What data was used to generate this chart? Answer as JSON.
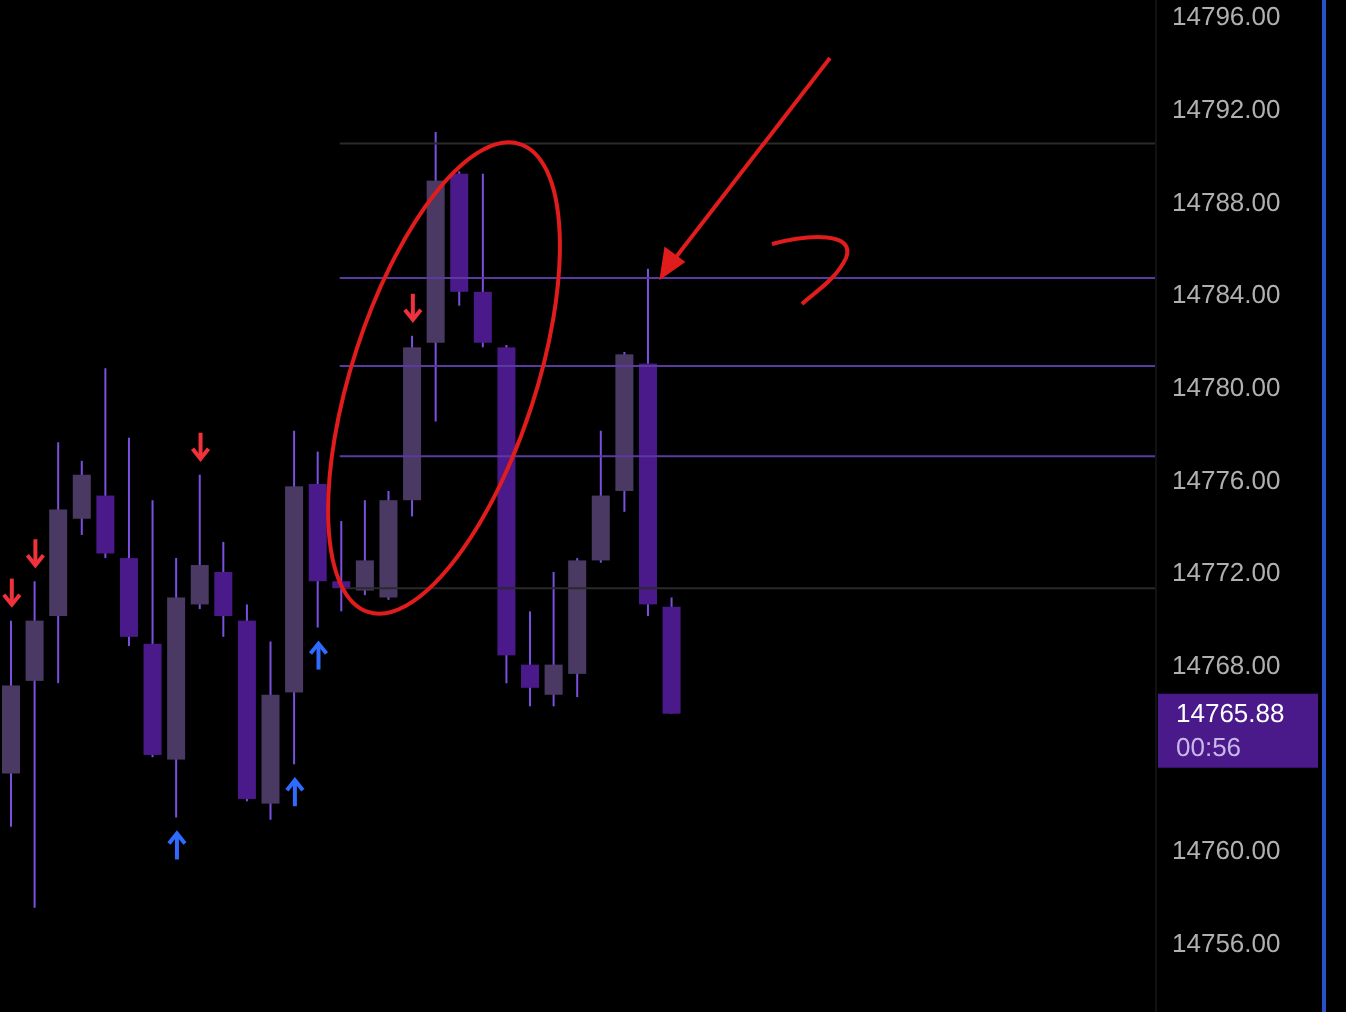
{
  "chart_data": {
    "type": "candlestick",
    "categories": [
      null,
      null,
      null,
      null,
      null,
      null,
      null,
      null,
      null,
      null,
      null,
      null,
      null,
      null,
      null,
      null,
      null,
      null,
      null,
      null,
      null,
      null,
      null,
      null,
      null,
      null,
      null,
      null,
      null,
      null,
      null,
      null,
      null,
      null,
      null,
      null,
      null,
      null,
      null,
      null,
      null,
      null,
      null,
      null,
      null,
      null,
      null,
      null,
      null
    ],
    "ohlc": [
      [
        14763.3,
        14769.9,
        14761.0,
        14767.1
      ],
      [
        14767.3,
        14771.6,
        14757.5,
        14769.9
      ],
      [
        14770.1,
        14777.6,
        14767.2,
        14774.7
      ],
      [
        14774.3,
        14776.8,
        14773.6,
        14776.2
      ],
      [
        14775.3,
        14780.8,
        14772.6,
        14772.8
      ],
      [
        14772.6,
        14777.8,
        14768.8,
        14769.2
      ],
      [
        14768.9,
        14775.1,
        14764.0,
        14764.1
      ],
      [
        14763.9,
        14772.6,
        14761.4,
        14770.9
      ],
      [
        14770.6,
        14776.2,
        14770.4,
        14772.3
      ],
      [
        14772.0,
        14773.3,
        14769.2,
        14770.1
      ],
      [
        14769.9,
        14770.6,
        14762.1,
        14762.2
      ],
      [
        14762.0,
        14769.0,
        14761.3,
        14766.7
      ],
      [
        14766.8,
        14778.1,
        14763.7,
        14775.7
      ],
      [
        14775.8,
        14777.2,
        14769.6,
        14771.6
      ],
      [
        14771.6,
        14774.2,
        14770.3,
        14771.3
      ],
      [
        14771.2,
        14775.1,
        14771.0,
        14772.5
      ],
      [
        14770.9,
        14775.5,
        14770.8,
        14775.1
      ],
      [
        14775.1,
        14782.2,
        14774.4,
        14781.7
      ],
      [
        14781.9,
        14791.0,
        14778.5,
        14788.9
      ],
      [
        14789.2,
        14789.3,
        14783.5,
        14784.1
      ],
      [
        14784.1,
        14789.2,
        14781.7,
        14781.9
      ],
      [
        14781.7,
        14781.8,
        14767.2,
        14768.4
      ],
      [
        14768.0,
        14770.3,
        14766.2,
        14767.0
      ],
      [
        14766.7,
        14772.0,
        14766.2,
        14768.0
      ],
      [
        14767.6,
        14772.6,
        14766.6,
        14772.5
      ],
      [
        14772.5,
        14778.1,
        14772.4,
        14775.3
      ],
      [
        14775.5,
        14781.5,
        14774.6,
        14781.4
      ],
      [
        14781.0,
        14785.1,
        14770.1,
        14770.6
      ],
      [
        14770.5,
        14770.9,
        14765.88,
        14765.88
      ],
      null,
      null,
      null,
      null,
      null,
      null,
      null,
      null,
      null,
      null,
      null,
      null,
      null,
      null,
      null,
      null,
      null,
      null,
      null,
      null
    ],
    "colors": [
      "#4a3a63",
      "#4a3a63",
      "#4a3a63",
      "#4a3a63",
      "#4a1a8a",
      "#4a1a8a",
      "#4a1a8a",
      "#4a3a63",
      "#4a3a63",
      "#4a1a8a",
      "#4a1a8a",
      "#4a3a63",
      "#4a3a63",
      "#4a1a8a",
      "#4a1a8a",
      "#4a3a63",
      "#4a3a63",
      "#4a3a63",
      "#4a3a63",
      "#4a1a8a",
      "#4a1a8a",
      "#4a1a8a",
      "#4a1a8a",
      "#4a3a63",
      "#4a3a63",
      "#4a3a63",
      "#4a3a63",
      "#4a1a8a",
      "#4a1a8a",
      null,
      null,
      null,
      null,
      null,
      null,
      null,
      null,
      null,
      null,
      null,
      null,
      null,
      null,
      null,
      null,
      null,
      null,
      null,
      null
    ],
    "ylim": [
      14753,
      14796.7
    ],
    "yticks": [
      {
        "value": 14756,
        "label": "14756.00"
      },
      {
        "value": 14760,
        "label": "14760.00"
      },
      {
        "value": 14768,
        "label": "14768.00"
      },
      {
        "value": 14772,
        "label": "14772.00"
      },
      {
        "value": 14776,
        "label": "14776.00"
      },
      {
        "value": 14780,
        "label": "14780.00"
      },
      {
        "value": 14784,
        "label": "14784.00"
      },
      {
        "value": 14788,
        "label": "14788.00"
      },
      {
        "value": 14792,
        "label": "14792.00"
      },
      {
        "value": 14796,
        "label": "14796.00"
      }
    ],
    "ref_lines": [
      {
        "axis": "y",
        "value": 14790.5,
        "color": "#2a2a2a"
      },
      {
        "axis": "y",
        "value": 14784.7,
        "color": "#5a3aa0"
      },
      {
        "axis": "y",
        "value": 14780.9,
        "color": "#5a3aa0"
      },
      {
        "axis": "y",
        "value": 14777.0,
        "color": "#5a3aa0"
      },
      {
        "axis": "y",
        "value": 14771.3,
        "color": "#2a2a2a"
      }
    ],
    "annotations": [
      "14765.88",
      "00:56"
    ],
    "grid": false,
    "legend": false,
    "tick_labels": "y"
  }
}
